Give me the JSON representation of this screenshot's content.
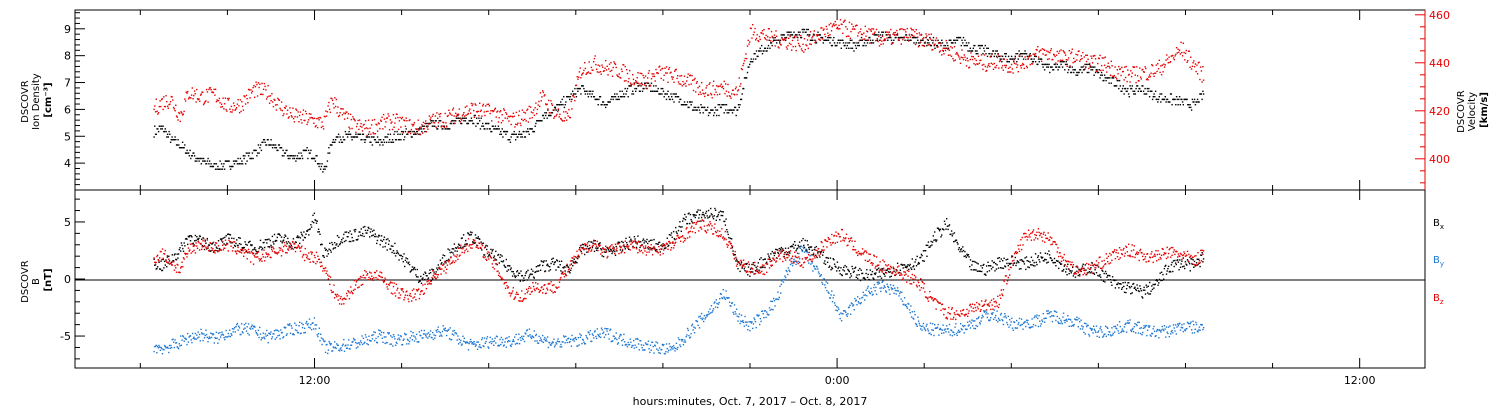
{
  "chart_data": [
    {
      "type": "scatter",
      "panel": "top",
      "ylabel": [
        "DSCOVR",
        "Ion Density",
        "[cm⁻³]"
      ],
      "ylabel_right": [
        "DSCOVR",
        "Velocity",
        "[km/s]"
      ],
      "ylim": [
        3.0,
        9.7
      ],
      "ylim_right": [
        387,
        462
      ],
      "yticks": [
        4,
        5,
        6,
        7,
        8,
        9
      ],
      "yticks_right": [
        400,
        420,
        440,
        460
      ],
      "colors": {
        "density": "#000000",
        "velocity": "#e60000",
        "right_axis": "#e60000"
      },
      "series": [
        {
          "axis": "left",
          "color": "#000000",
          "x": [
            -15.7,
            -15.5,
            -15.3,
            -15.1,
            -14.9,
            -14.6,
            -14.3,
            -14.0,
            -13.7,
            -13.4,
            -13.1,
            -12.8,
            -12.5,
            -12.2,
            -12.0,
            -11.8,
            -11.6,
            -11.4,
            -11.1,
            -10.8,
            -10.5,
            -10.2,
            -9.9,
            -9.6,
            -9.3,
            -9.0,
            -8.7,
            -8.4,
            -8.1,
            -7.8,
            -7.5,
            -7.2,
            -7.0,
            -6.8,
            -6.5,
            -6.2,
            -5.9,
            -5.6,
            -5.3,
            -5.0,
            -4.7,
            -4.4,
            -4.1,
            -3.8,
            -3.5,
            -3.2,
            -2.9,
            -2.6,
            -2.3,
            -2.0,
            -1.7,
            -1.4,
            -1.1,
            -0.8,
            -0.5,
            -0.2,
            0.1,
            0.4,
            0.7,
            1.0,
            1.3,
            1.6,
            1.9,
            2.2,
            2.5,
            2.8,
            3.1,
            3.4,
            3.7,
            4.0,
            4.3,
            4.6,
            4.9,
            5.2,
            5.5,
            5.8,
            6.1,
            6.4,
            6.7,
            7.0,
            7.3,
            7.6,
            7.9,
            8.2,
            8.4
          ],
          "values": [
            5.2,
            5.3,
            4.9,
            4.7,
            4.4,
            4.1,
            3.9,
            4.0,
            4.1,
            4.4,
            4.8,
            4.5,
            4.2,
            4.4,
            4.3,
            3.7,
            4.9,
            5.0,
            5.0,
            4.9,
            4.8,
            5.0,
            5.1,
            5.2,
            5.5,
            5.4,
            5.6,
            5.7,
            5.4,
            5.2,
            5.0,
            5.1,
            5.3,
            5.8,
            6.0,
            6.4,
            6.8,
            6.5,
            6.2,
            6.6,
            6.8,
            6.9,
            6.7,
            6.5,
            6.3,
            6.0,
            5.9,
            6.1,
            6.0,
            7.9,
            8.3,
            8.6,
            8.8,
            8.9,
            8.7,
            8.6,
            8.5,
            8.4,
            8.6,
            8.8,
            8.6,
            8.7,
            8.6,
            8.5,
            8.4,
            8.6,
            8.3,
            8.2,
            8.0,
            7.9,
            8.1,
            7.8,
            7.5,
            7.7,
            7.4,
            7.6,
            7.2,
            7.0,
            6.7,
            6.8,
            6.5,
            6.4,
            6.3,
            6.2,
            6.6
          ]
        },
        {
          "axis": "right",
          "color": "#e60000",
          "x": [
            -15.7,
            -15.5,
            -15.3,
            -15.1,
            -14.9,
            -14.6,
            -14.3,
            -14.0,
            -13.7,
            -13.4,
            -13.1,
            -12.8,
            -12.5,
            -12.2,
            -12.0,
            -11.8,
            -11.6,
            -11.4,
            -11.1,
            -10.8,
            -10.5,
            -10.2,
            -9.9,
            -9.6,
            -9.3,
            -9.0,
            -8.7,
            -8.4,
            -8.1,
            -7.8,
            -7.5,
            -7.2,
            -7.0,
            -6.8,
            -6.5,
            -6.2,
            -5.9,
            -5.6,
            -5.3,
            -5.0,
            -4.7,
            -4.4,
            -4.1,
            -3.8,
            -3.5,
            -3.2,
            -2.9,
            -2.6,
            -2.3,
            -2.0,
            -1.7,
            -1.4,
            -1.1,
            -0.8,
            -0.5,
            -0.2,
            0.1,
            0.4,
            0.7,
            1.0,
            1.3,
            1.6,
            1.9,
            2.2,
            2.5,
            2.8,
            3.1,
            3.4,
            3.7,
            4.0,
            4.3,
            4.6,
            4.9,
            5.2,
            5.5,
            5.8,
            6.1,
            6.4,
            6.7,
            7.0,
            7.3,
            7.6,
            7.9,
            8.2,
            8.4
          ],
          "values": [
            421,
            424,
            425,
            418,
            428,
            426,
            427,
            422,
            423,
            429,
            428,
            422,
            418,
            417,
            416,
            415,
            425,
            419,
            414,
            413,
            415,
            416,
            414,
            413,
            416,
            417,
            419,
            421,
            420,
            419,
            416,
            418,
            420,
            426,
            420,
            416,
            437,
            440,
            438,
            437,
            434,
            433,
            436,
            435,
            433,
            430,
            429,
            430,
            428,
            453,
            452,
            450,
            449,
            448,
            451,
            454,
            455,
            453,
            452,
            450,
            451,
            452,
            450,
            449,
            446,
            443,
            441,
            440,
            441,
            439,
            441,
            444,
            444,
            442,
            443,
            440,
            440,
            437,
            435,
            436,
            437,
            441,
            446,
            439,
            435
          ]
        }
      ]
    },
    {
      "type": "scatter",
      "panel": "bottom",
      "ylabel": [
        "DSCOVR",
        "B",
        "[nT]"
      ],
      "ylim": [
        -7.8,
        7.8
      ],
      "yticks": [
        -5,
        0,
        5
      ],
      "legend": [
        {
          "label": "B",
          "sub": "x",
          "color": "#000000"
        },
        {
          "label": "B",
          "sub": "y",
          "color": "#1e78d2"
        },
        {
          "label": "B",
          "sub": "z",
          "color": "#e60000"
        }
      ],
      "series": [
        {
          "color": "#000000",
          "x": [
            -15.7,
            -15.5,
            -15.3,
            -15.1,
            -14.9,
            -14.6,
            -14.3,
            -14.0,
            -13.7,
            -13.4,
            -13.1,
            -12.8,
            -12.5,
            -12.2,
            -12.0,
            -11.8,
            -11.6,
            -11.4,
            -11.1,
            -10.8,
            -10.5,
            -10.2,
            -9.9,
            -9.6,
            -9.3,
            -9.0,
            -8.7,
            -8.4,
            -8.1,
            -7.8,
            -7.5,
            -7.2,
            -7.0,
            -6.8,
            -6.5,
            -6.2,
            -5.9,
            -5.6,
            -5.3,
            -5.0,
            -4.7,
            -4.4,
            -4.1,
            -3.8,
            -3.5,
            -3.2,
            -2.9,
            -2.6,
            -2.3,
            -2.0,
            -1.7,
            -1.4,
            -1.1,
            -0.8,
            -0.5,
            -0.2,
            0.1,
            0.4,
            0.7,
            1.0,
            1.3,
            1.6,
            1.9,
            2.2,
            2.5,
            2.8,
            3.1,
            3.4,
            3.7,
            4.0,
            4.3,
            4.6,
            4.9,
            5.2,
            5.5,
            5.8,
            6.1,
            6.4,
            6.7,
            7.0,
            7.3,
            7.6,
            7.9,
            8.2,
            8.4
          ],
          "values": [
            1.5,
            1.2,
            1.8,
            2.5,
            3.8,
            3.2,
            2.9,
            3.5,
            3.1,
            2.7,
            3.3,
            3.6,
            3.2,
            4.0,
            5.5,
            2.1,
            3.1,
            3.7,
            3.9,
            4.2,
            3.5,
            2.8,
            1.5,
            0.2,
            0.4,
            2.0,
            3.2,
            3.8,
            2.6,
            1.8,
            0.9,
            0.2,
            0.5,
            1.2,
            1.4,
            0.8,
            2.5,
            3.0,
            2.4,
            2.8,
            3.4,
            3.1,
            2.9,
            3.6,
            5.3,
            5.6,
            5.8,
            5.5,
            1.1,
            0.8,
            1.6,
            2.4,
            2.7,
            3.1,
            2.5,
            1.5,
            0.9,
            0.6,
            0.3,
            0.5,
            0.9,
            1.3,
            1.6,
            3.6,
            4.8,
            2.7,
            1.1,
            0.9,
            1.5,
            1.6,
            1.4,
            1.8,
            2.1,
            1.1,
            0.6,
            1.1,
            0.4,
            -0.5,
            -0.7,
            -1.1,
            -0.5,
            1.1,
            1.5,
            1.2,
            2.0
          ]
        },
        {
          "color": "#1e78d2",
          "x": [
            -15.7,
            -15.5,
            -15.3,
            -15.1,
            -14.9,
            -14.6,
            -14.3,
            -14.0,
            -13.7,
            -13.4,
            -13.1,
            -12.8,
            -12.5,
            -12.2,
            -12.0,
            -11.8,
            -11.6,
            -11.4,
            -11.1,
            -10.8,
            -10.5,
            -10.2,
            -9.9,
            -9.6,
            -9.3,
            -9.0,
            -8.7,
            -8.4,
            -8.1,
            -7.8,
            -7.5,
            -7.2,
            -7.0,
            -6.8,
            -6.5,
            -6.2,
            -5.9,
            -5.6,
            -5.3,
            -5.0,
            -4.7,
            -4.4,
            -4.1,
            -3.8,
            -3.5,
            -3.2,
            -2.9,
            -2.6,
            -2.3,
            -2.0,
            -1.7,
            -1.4,
            -1.1,
            -0.8,
            -0.5,
            -0.2,
            0.1,
            0.4,
            0.7,
            1.0,
            1.3,
            1.6,
            1.9,
            2.2,
            2.5,
            2.8,
            3.1,
            3.4,
            3.7,
            4.0,
            4.3,
            4.6,
            4.9,
            5.2,
            5.5,
            5.8,
            6.1,
            6.4,
            6.7,
            7.0,
            7.3,
            7.6,
            7.9,
            8.2,
            8.4
          ],
          "values": [
            -5.9,
            -6.0,
            -5.8,
            -5.5,
            -5.1,
            -4.8,
            -5.2,
            -4.6,
            -4.3,
            -4.5,
            -5.0,
            -4.7,
            -4.3,
            -4.1,
            -3.8,
            -5.9,
            -6.0,
            -5.8,
            -5.6,
            -5.3,
            -4.9,
            -5.3,
            -5.1,
            -5.0,
            -4.7,
            -4.5,
            -5.2,
            -5.8,
            -5.5,
            -5.3,
            -5.4,
            -5.0,
            -4.8,
            -5.2,
            -5.6,
            -5.4,
            -5.3,
            -4.9,
            -4.7,
            -5.2,
            -5.5,
            -5.8,
            -6.0,
            -6.2,
            -5.0,
            -3.8,
            -2.6,
            -1.2,
            -3.2,
            -4.1,
            -3.1,
            -1.8,
            1.2,
            2.6,
            0.8,
            -1.0,
            -3.4,
            -2.1,
            -1.1,
            -0.6,
            -0.9,
            -2.2,
            -4.2,
            -4.4,
            -4.5,
            -4.3,
            -3.9,
            -3.1,
            -3.2,
            -3.9,
            -3.8,
            -3.6,
            -3.1,
            -3.4,
            -3.8,
            -4.5,
            -4.6,
            -4.3,
            -4.0,
            -4.4,
            -4.6,
            -4.5,
            -4.1,
            -4.2,
            -4.3
          ]
        },
        {
          "color": "#e60000",
          "x": [
            -15.7,
            -15.5,
            -15.3,
            -15.1,
            -14.9,
            -14.6,
            -14.3,
            -14.0,
            -13.7,
            -13.4,
            -13.1,
            -12.8,
            -12.5,
            -12.2,
            -12.0,
            -11.8,
            -11.6,
            -11.4,
            -11.1,
            -10.8,
            -10.5,
            -10.2,
            -9.9,
            -9.6,
            -9.3,
            -9.0,
            -8.7,
            -8.4,
            -8.1,
            -7.8,
            -7.5,
            -7.2,
            -7.0,
            -6.8,
            -6.5,
            -6.2,
            -5.9,
            -5.6,
            -5.3,
            -5.0,
            -4.7,
            -4.4,
            -4.1,
            -3.8,
            -3.5,
            -3.2,
            -2.9,
            -2.6,
            -2.3,
            -2.0,
            -1.7,
            -1.4,
            -1.1,
            -0.8,
            -0.5,
            -0.2,
            0.1,
            0.4,
            0.7,
            1.0,
            1.3,
            1.6,
            1.9,
            2.2,
            2.5,
            2.8,
            3.1,
            3.4,
            3.7,
            4.0,
            4.3,
            4.6,
            4.9,
            5.2,
            5.5,
            5.8,
            6.1,
            6.4,
            6.7,
            7.0,
            7.3,
            7.6,
            7.9,
            8.2,
            8.4
          ],
          "values": [
            1.8,
            2.3,
            1.5,
            0.8,
            2.6,
            3.2,
            2.8,
            3.0,
            2.6,
            1.8,
            2.2,
            2.6,
            3.0,
            2.1,
            2.0,
            1.2,
            -0.8,
            -2.0,
            -0.6,
            0.5,
            0.2,
            -0.8,
            -1.5,
            -1.2,
            0.3,
            1.1,
            2.4,
            3.3,
            2.4,
            0.8,
            -1.2,
            -1.5,
            -0.5,
            -0.8,
            -0.6,
            0.9,
            2.5,
            3.2,
            2.4,
            2.8,
            3.1,
            2.5,
            2.7,
            3.0,
            4.0,
            4.8,
            4.5,
            3.9,
            1.5,
            1.0,
            0.9,
            2.1,
            2.0,
            1.6,
            2.3,
            3.5,
            3.9,
            2.8,
            1.9,
            1.2,
            0.9,
            0.3,
            -0.4,
            -2.0,
            -2.9,
            -3.0,
            -2.5,
            -2.2,
            -1.9,
            1.5,
            3.8,
            4.1,
            3.5,
            1.8,
            0.7,
            1.0,
            1.6,
            2.2,
            2.6,
            2.1,
            2.0,
            2.4,
            2.2,
            1.6,
            2.3
          ]
        }
      ]
    }
  ],
  "xaxis": {
    "range_hours": [
      -17.5,
      13.5
    ],
    "major_ticks": [
      -12,
      0,
      12
    ],
    "major_labels": [
      "12:00",
      "0:00",
      "12:00"
    ],
    "minor_step_hours": 2
  },
  "footer": "hours:minutes, Oct.  7, 2017 – Oct.  8, 2017"
}
